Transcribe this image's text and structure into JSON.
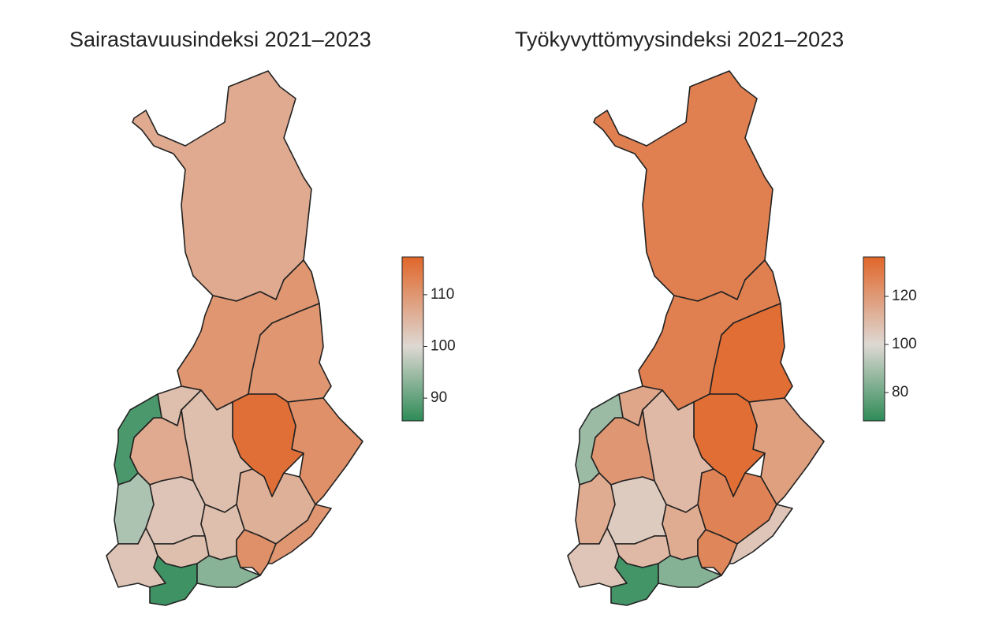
{
  "maps": [
    {
      "title": "Sairastavuusindeksi 2021–2023",
      "colorbar": {
        "lim": [
          85.6,
          117.3
        ],
        "ticks": [
          90,
          100,
          110
        ],
        "center": 100,
        "colors": [
          "#2e8b57",
          "#ded8d3",
          "#e0662a"
        ]
      },
      "values": [
        107,
        110,
        110,
        111,
        116,
        106,
        104,
        104,
        107,
        88,
        96,
        103,
        103,
        104,
        104,
        111,
        110,
        87,
        93
      ]
    },
    {
      "title": "Työkyvyttömyysindeksi 2021–2023",
      "colorbar": {
        "lim": [
          68.2,
          136.4
        ],
        "ticks": [
          80,
          100,
          120
        ],
        "center": 100,
        "colors": [
          "#2e8b57",
          "#ded8d3",
          "#e0662a"
        ]
      },
      "values": [
        128,
        128,
        134,
        118,
        134,
        127,
        110,
        116,
        121,
        88,
        114,
        104,
        106,
        110,
        114,
        126,
        106,
        72,
        84
      ]
    }
  ]
}
